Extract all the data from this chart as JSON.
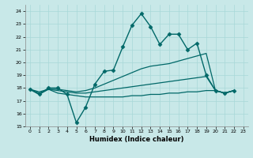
{
  "title": "",
  "xlabel": "Humidex (Indice chaleur)",
  "ylabel": "",
  "bg_color": "#c8e8e8",
  "grid_color": "#a8d8d8",
  "line_color": "#006868",
  "xlim": [
    -0.5,
    23.5
  ],
  "ylim": [
    15,
    24.5
  ],
  "yticks": [
    15,
    16,
    17,
    18,
    19,
    20,
    21,
    22,
    23,
    24
  ],
  "xticks": [
    0,
    1,
    2,
    3,
    4,
    5,
    6,
    7,
    8,
    9,
    10,
    11,
    12,
    13,
    14,
    15,
    16,
    17,
    18,
    19,
    20,
    21,
    22,
    23
  ],
  "series": [
    {
      "x": [
        0,
        1,
        2,
        3,
        4,
        5,
        6,
        7,
        8,
        9,
        10,
        11,
        12,
        13,
        14,
        15,
        16,
        17,
        18,
        19,
        20,
        21,
        22
      ],
      "y": [
        17.9,
        17.5,
        18.0,
        18.0,
        17.5,
        15.3,
        16.5,
        18.3,
        19.3,
        19.4,
        21.2,
        22.9,
        23.8,
        22.8,
        21.4,
        22.2,
        22.2,
        21.0,
        21.5,
        19.0,
        17.8,
        17.6,
        17.8
      ],
      "marker": "D",
      "markersize": 2.5,
      "linewidth": 1.0
    },
    {
      "x": [
        0,
        1,
        2,
        3,
        4,
        5,
        6,
        7,
        8,
        9,
        10,
        11,
        12,
        13,
        14,
        15,
        16,
        17,
        18,
        19,
        20,
        21,
        22
      ],
      "y": [
        17.9,
        17.7,
        17.9,
        17.9,
        17.8,
        17.7,
        17.8,
        18.0,
        18.3,
        18.6,
        18.9,
        19.2,
        19.5,
        19.7,
        19.8,
        19.9,
        20.1,
        20.3,
        20.5,
        20.7,
        17.8,
        17.6,
        17.8
      ],
      "marker": null,
      "markersize": 0,
      "linewidth": 0.9
    },
    {
      "x": [
        0,
        1,
        2,
        3,
        4,
        5,
        6,
        7,
        8,
        9,
        10,
        11,
        12,
        13,
        14,
        15,
        16,
        17,
        18,
        19,
        20,
        21,
        22
      ],
      "y": [
        17.9,
        17.6,
        17.9,
        17.8,
        17.7,
        17.6,
        17.6,
        17.7,
        17.8,
        17.9,
        18.0,
        18.1,
        18.2,
        18.3,
        18.4,
        18.5,
        18.6,
        18.7,
        18.8,
        18.9,
        17.8,
        17.6,
        17.8
      ],
      "marker": null,
      "markersize": 0,
      "linewidth": 0.9
    },
    {
      "x": [
        0,
        1,
        2,
        3,
        4,
        5,
        6,
        7,
        8,
        9,
        10,
        11,
        12,
        13,
        14,
        15,
        16,
        17,
        18,
        19,
        20,
        21,
        22
      ],
      "y": [
        17.9,
        17.5,
        17.9,
        17.6,
        17.5,
        17.4,
        17.3,
        17.3,
        17.3,
        17.3,
        17.3,
        17.4,
        17.4,
        17.5,
        17.5,
        17.6,
        17.6,
        17.7,
        17.7,
        17.8,
        17.8,
        17.6,
        17.8
      ],
      "marker": null,
      "markersize": 0,
      "linewidth": 0.9
    }
  ]
}
